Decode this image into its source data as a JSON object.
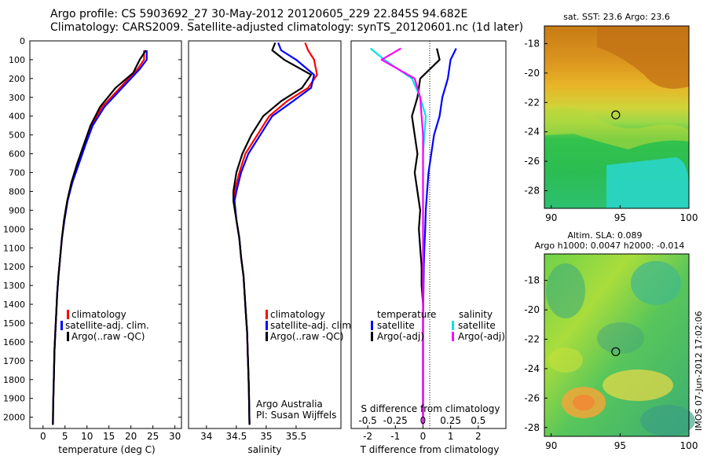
{
  "title": {
    "line1": "Argo profile: CS 5903692_27 30-May-2012 20120605_229 22.845S 94.682E",
    "line2": "Climatology: CARS2009. Satellite-adjusted climatology: synTS_20120601.nc (1d later)"
  },
  "colors": {
    "climatology": "#ff0000",
    "satellite": "#0000ff",
    "argo": "#000000",
    "argo_adj": "#ff00ff",
    "sat_cyan": "#00e5e5"
  },
  "depth_ticks": [
    "0",
    "100",
    "200",
    "300",
    "400",
    "500",
    "600",
    "700",
    "800",
    "900",
    "1000",
    "1100",
    "1200",
    "1300",
    "1400",
    "1500",
    "1600",
    "1700",
    "1800",
    "1900",
    "2000"
  ],
  "legend": {
    "climatology": "climatology",
    "satellite_adj": "satellite-adj. clim.",
    "argo_raw": "Argo(..raw -QC)"
  },
  "diff_legend": {
    "temperature": "temperature",
    "salinity": "salinity",
    "satellite": "satellite",
    "argo_adj": "Argo(-adj)"
  },
  "credit": {
    "line1": "Argo Australia",
    "line2": "PI: Susan Wijffels"
  },
  "side_stamp": "IMOS 07-Jun-2012 17:02:06",
  "chart_data": [
    {
      "type": "line",
      "xlabel": "temperature (deg C)",
      "ylabel": "",
      "xlim": [
        -3,
        31.5
      ],
      "ylim": [
        2060,
        0
      ],
      "x_ticks": [
        "0",
        "5",
        "10",
        "15",
        "20",
        "25",
        "30"
      ],
      "series": [
        {
          "name": "climatology",
          "x": [
            23.0,
            23.0,
            21.5,
            17.5,
            13.5,
            11.0,
            9.5,
            8.0,
            6.5,
            5.5,
            4.8,
            4.3,
            3.9,
            3.5,
            3.2,
            3.0,
            2.8,
            2.6,
            2.5,
            2.4,
            2.3,
            2.25
          ],
          "y": [
            50,
            100,
            150,
            250,
            350,
            450,
            550,
            650,
            750,
            850,
            950,
            1050,
            1150,
            1250,
            1350,
            1450,
            1550,
            1650,
            1750,
            1850,
            1950,
            2040
          ]
        },
        {
          "name": "satellite-adj. clim.",
          "x": [
            23.6,
            23.6,
            22.0,
            18.0,
            14.0,
            11.3,
            9.7,
            8.2,
            6.7,
            5.6,
            4.9,
            4.3,
            3.9,
            3.5,
            3.2,
            3.0,
            2.8,
            2.6,
            2.5,
            2.4,
            2.3,
            2.25
          ],
          "y": [
            50,
            100,
            150,
            250,
            350,
            450,
            550,
            650,
            750,
            850,
            950,
            1050,
            1150,
            1250,
            1350,
            1450,
            1550,
            1650,
            1750,
            1850,
            1950,
            2040
          ]
        },
        {
          "name": "Argo(..raw -QC)",
          "x": [
            23.4,
            22.0,
            20.5,
            16.5,
            13.0,
            10.8,
            9.3,
            7.8,
            6.5,
            5.5,
            4.8,
            4.3,
            3.9,
            3.5,
            3.2,
            3.0,
            2.8,
            2.6,
            2.5,
            2.4,
            2.3,
            2.25
          ],
          "y": [
            50,
            100,
            170,
            250,
            350,
            450,
            550,
            650,
            750,
            850,
            950,
            1050,
            1150,
            1250,
            1350,
            1450,
            1550,
            1650,
            1750,
            1850,
            1950,
            2040
          ]
        }
      ]
    },
    {
      "type": "line",
      "xlabel": "salinity",
      "xlim": [
        33.7,
        36.25
      ],
      "ylim": [
        2060,
        0
      ],
      "x_ticks": [
        "34",
        "34.5",
        "35",
        "35.5"
      ],
      "legend": [
        "climatology",
        "satellite-adj. clim.",
        "Argo(..raw -QC)"
      ],
      "series": [
        {
          "name": "climatology",
          "x": [
            35.65,
            35.7,
            35.8,
            35.85,
            35.7,
            35.35,
            35.05,
            34.85,
            34.65,
            34.55,
            34.47,
            34.45,
            34.5,
            34.55,
            34.58,
            34.62,
            34.64,
            34.66,
            34.68,
            34.69,
            34.7,
            34.71,
            34.72
          ],
          "y": [
            10,
            50,
            100,
            180,
            250,
            320,
            400,
            500,
            600,
            700,
            800,
            850,
            950,
            1050,
            1150,
            1250,
            1350,
            1450,
            1550,
            1650,
            1750,
            1850,
            2040
          ]
        },
        {
          "name": "satellite-adj. clim.",
          "x": [
            35.2,
            35.25,
            35.5,
            35.8,
            35.75,
            35.45,
            35.1,
            34.9,
            34.7,
            34.58,
            34.5,
            34.47,
            34.5,
            34.55,
            34.58,
            34.62,
            34.64,
            34.66,
            34.68,
            34.69,
            34.7,
            34.71,
            34.72
          ],
          "y": [
            10,
            50,
            100,
            180,
            250,
            320,
            400,
            500,
            600,
            700,
            800,
            850,
            950,
            1050,
            1150,
            1250,
            1350,
            1450,
            1550,
            1650,
            1750,
            1850,
            2040
          ]
        },
        {
          "name": "Argo(..raw -QC)",
          "x": [
            35.15,
            35.1,
            35.3,
            35.75,
            35.6,
            35.25,
            34.95,
            34.75,
            34.6,
            34.5,
            34.45,
            34.45,
            34.5,
            34.55,
            34.58,
            34.62,
            34.64,
            34.66,
            34.68,
            34.69,
            34.7,
            34.71,
            34.72
          ],
          "y": [
            10,
            50,
            100,
            180,
            250,
            320,
            400,
            500,
            600,
            700,
            800,
            850,
            950,
            1050,
            1150,
            1250,
            1350,
            1450,
            1550,
            1650,
            1750,
            1850,
            2040
          ]
        }
      ]
    },
    {
      "type": "line",
      "xlabel": "T difference from climatology",
      "top_xlabel": "S difference from climatology",
      "xlim": [
        -2.6,
        3.0
      ],
      "ylim": [
        2060,
        0
      ],
      "x_ticks": [
        "-2",
        "-1",
        "0",
        "1",
        "2"
      ],
      "top_ticks": [
        "-0.5",
        "-0.25",
        "0",
        "0.25",
        "0.5"
      ],
      "series": [
        {
          "name": "temperature satellite",
          "x": [
            1.2,
            1.0,
            0.9,
            0.7,
            0.6,
            0.4,
            0.3,
            0.2,
            0.15,
            0.1,
            0.08,
            0.05,
            0.03,
            0.02,
            0.01,
            0,
            0,
            0,
            0,
            0,
            0
          ],
          "y": [
            40,
            100,
            200,
            300,
            400,
            500,
            600,
            700,
            800,
            900,
            1000,
            1100,
            1200,
            1300,
            1400,
            1500,
            1600,
            1700,
            1800,
            1900,
            2040
          ]
        },
        {
          "name": "temperature Argo(-adj)",
          "x": [
            0.5,
            0.6,
            -0.1,
            -0.2,
            -0.4,
            -0.3,
            -0.2,
            -0.3,
            -0.2,
            -0.1,
            -0.15,
            -0.1,
            -0.05,
            -0.05,
            0,
            0,
            0,
            0,
            0,
            0,
            0
          ],
          "y": [
            40,
            100,
            200,
            300,
            400,
            500,
            600,
            700,
            800,
            900,
            1000,
            1100,
            1200,
            1300,
            1400,
            1500,
            1600,
            1700,
            1800,
            1900,
            2040
          ]
        },
        {
          "name": "salinity satellite",
          "x": [
            -1.9,
            -1.4,
            -0.4,
            -0.1,
            0.1,
            0.05,
            0.0,
            0.0,
            0.0,
            0,
            0,
            0,
            0,
            0,
            0,
            0,
            0,
            0,
            0,
            0,
            0
          ],
          "y": [
            40,
            100,
            200,
            300,
            400,
            500,
            600,
            700,
            800,
            900,
            1000,
            1100,
            1200,
            1300,
            1400,
            1500,
            1600,
            1700,
            1800,
            1900,
            2040
          ]
        },
        {
          "name": "salinity Argo(-adj)",
          "x": [
            -0.8,
            -1.5,
            -0.3,
            -0.1,
            -0.05,
            0.0,
            0.0,
            0.0,
            0.0,
            0,
            0,
            0,
            0,
            0,
            0,
            0,
            0,
            0,
            0,
            0,
            0
          ],
          "y": [
            40,
            100,
            200,
            300,
            400,
            500,
            600,
            700,
            800,
            900,
            1000,
            1100,
            1200,
            1300,
            1400,
            1500,
            1600,
            1700,
            1800,
            1900,
            2040
          ]
        }
      ]
    },
    {
      "type": "heatmap",
      "title": "sat. SST: 23.6 Argo: 23.6",
      "xlim": [
        89.5,
        100
      ],
      "ylim": [
        -29.2,
        -16.8
      ],
      "x_ticks": [
        "90",
        "95",
        "100"
      ],
      "y_ticks": [
        "-18",
        "-20",
        "-22",
        "-24",
        "-26",
        "-28"
      ],
      "marker": {
        "lon": 94.682,
        "lat": -22.845
      }
    },
    {
      "type": "heatmap",
      "title": "Altim. SLA: 0.089",
      "subtitle": "Argo h1000: 0.0047 h2000: -0.014",
      "xlim": [
        89.5,
        100
      ],
      "ylim": [
        -28.6,
        -16.2
      ],
      "x_ticks": [
        "90",
        "95",
        "100"
      ],
      "y_ticks": [
        "-18",
        "-20",
        "-22",
        "-24",
        "-26",
        "-28"
      ],
      "marker": {
        "lon": 94.682,
        "lat": -22.845
      }
    }
  ]
}
